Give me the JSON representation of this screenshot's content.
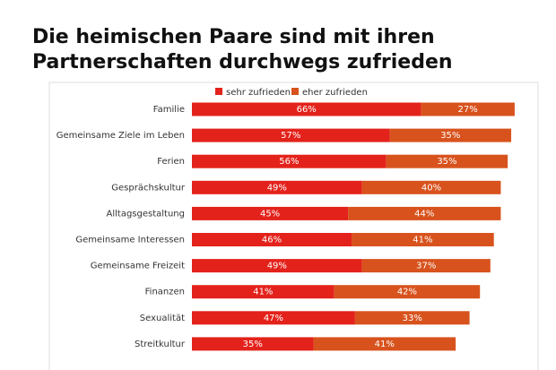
{
  "chart_data": {
    "type": "stacked-bar-horizontal",
    "title": "Die heimischen Paare sind mit ihren Partnerschaften durchwegs zufrieden",
    "categories": [
      "Familie",
      "Gemeinsame Ziele im Leben",
      "Ferien",
      "Gesprächskultur",
      "Alltagsgestaltung",
      "Gemeinsame Interessen",
      "Gemeinsame Freizeit",
      "Finanzen",
      "Sexualität",
      "Streitkultur"
    ],
    "series": [
      {
        "name": "sehr zufrieden",
        "color": "#e3221b",
        "values": [
          66,
          57,
          56,
          49,
          45,
          46,
          49,
          41,
          47,
          35
        ],
        "value_labels": [
          "66%",
          "57%",
          "56%",
          "49%",
          "45%",
          "46%",
          "49%",
          "41%",
          "47%",
          "35%"
        ]
      },
      {
        "name": "eher zufrieden",
        "color": "#d8521d",
        "values": [
          27,
          35,
          35,
          40,
          44,
          41,
          37,
          42,
          33,
          41
        ],
        "value_labels": [
          "27%",
          "35%",
          "35%",
          "40%",
          "44%",
          "41%",
          "37%",
          "42%",
          "33%",
          "41%"
        ]
      }
    ]
  }
}
